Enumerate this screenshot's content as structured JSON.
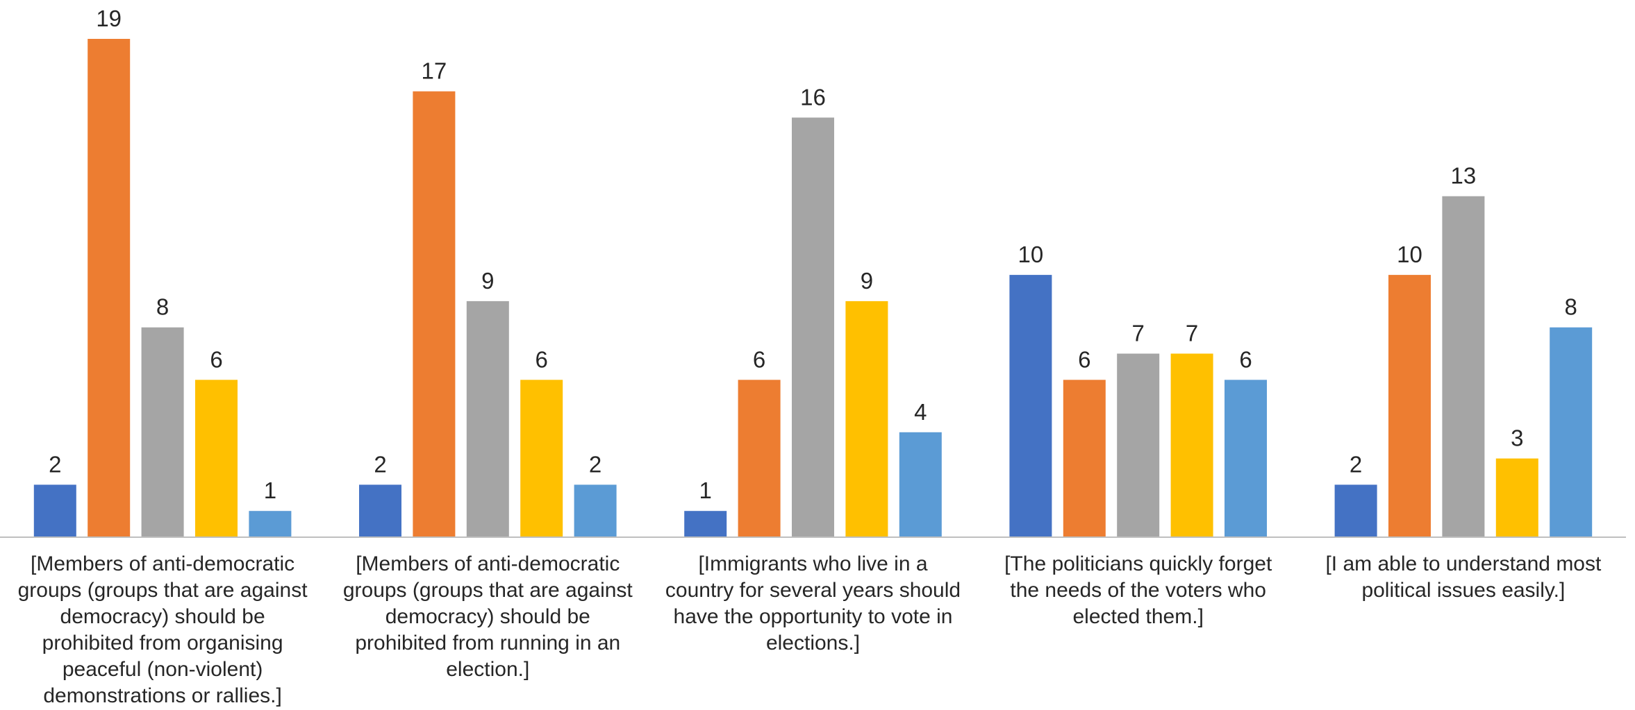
{
  "chart_data": {
    "type": "bar",
    "categories": [
      [
        "[Members of anti-democratic",
        "groups (groups that are against",
        "democracy) should be",
        "prohibited from organising",
        "peaceful (non-violent)",
        "demonstrations or rallies.]"
      ],
      [
        "[Members of anti-democratic",
        "groups (groups that are against",
        "democracy) should be",
        "prohibited from running in an",
        "election.]"
      ],
      [
        "[Immigrants who live in a",
        "country for several years should",
        "have the opportunity to vote in",
        "elections.]"
      ],
      [
        "[The politicians quickly forget",
        "the needs of the voters who",
        "elected them.]"
      ],
      [
        "[I am able to understand most",
        "political issues easily.]"
      ]
    ],
    "series": [
      {
        "values": [
          2,
          2,
          1,
          10,
          2
        ],
        "color": "#4472C4"
      },
      {
        "values": [
          19,
          17,
          6,
          6,
          10
        ],
        "color": "#ED7D31"
      },
      {
        "values": [
          8,
          9,
          16,
          7,
          13
        ],
        "color": "#A5A5A5"
      },
      {
        "values": [
          6,
          6,
          9,
          7,
          3
        ],
        "color": "#FFC000"
      },
      {
        "values": [
          1,
          2,
          4,
          6,
          8
        ],
        "color": "#5B9BD5"
      }
    ],
    "ylim": [
      0,
      19
    ],
    "title": "",
    "xlabel": "",
    "ylabel": "",
    "grid": false,
    "legend": false,
    "axis_color": "#BFBFBF"
  }
}
